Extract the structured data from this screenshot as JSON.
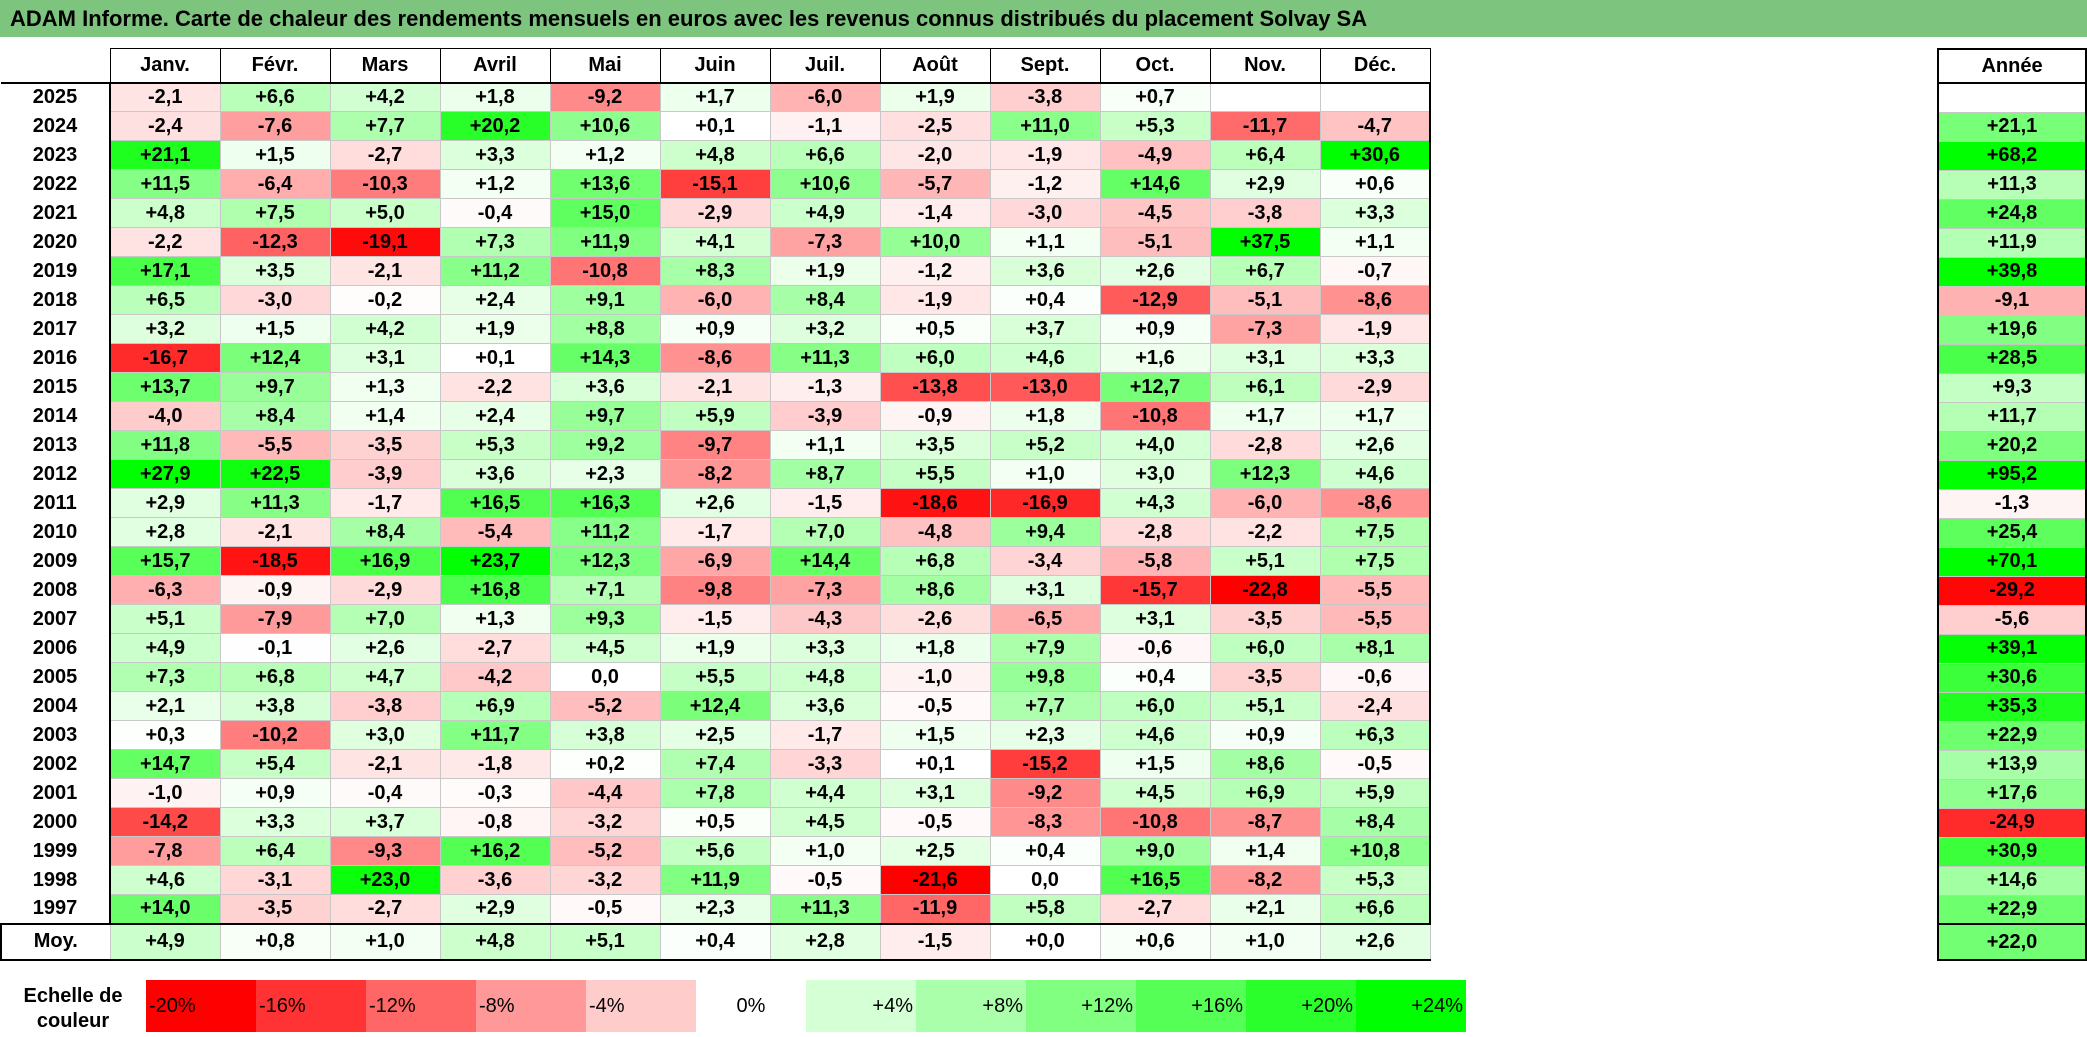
{
  "title": "ADAM Informe. Carte de chaleur des rendements mensuels en euros avec les revenus connus distribués du placement Solvay SA",
  "chart_data": {
    "type": "heatmap",
    "title": "ADAM Informe. Carte de chaleur des rendements mensuels en euros avec les revenus connus distribués du placement Solvay SA",
    "columns": [
      "Janv.",
      "Févr.",
      "Mars",
      "Avril",
      "Mai",
      "Juin",
      "Juil.",
      "Août",
      "Sept.",
      "Oct.",
      "Nov.",
      "Déc."
    ],
    "annual_header": "Année",
    "rows": [
      {
        "year": "2025",
        "values": [
          "-2,1",
          "+6,6",
          "+4,2",
          "+1,8",
          "-9,2",
          "+1,7",
          "-6,0",
          "+1,9",
          "-3,8",
          "+0,7",
          "",
          ""
        ],
        "annual": ""
      },
      {
        "year": "2024",
        "values": [
          "-2,4",
          "-7,6",
          "+7,7",
          "+20,2",
          "+10,6",
          "+0,1",
          "-1,1",
          "-2,5",
          "+11,0",
          "+5,3",
          "-11,7",
          "-4,7"
        ],
        "annual": "+21,1"
      },
      {
        "year": "2023",
        "values": [
          "+21,1",
          "+1,5",
          "-2,7",
          "+3,3",
          "+1,2",
          "+4,8",
          "+6,6",
          "-2,0",
          "-1,9",
          "-4,9",
          "+6,4",
          "+30,6"
        ],
        "annual": "+68,2"
      },
      {
        "year": "2022",
        "values": [
          "+11,5",
          "-6,4",
          "-10,3",
          "+1,2",
          "+13,6",
          "-15,1",
          "+10,6",
          "-5,7",
          "-1,2",
          "+14,6",
          "+2,9",
          "+0,6"
        ],
        "annual": "+11,3"
      },
      {
        "year": "2021",
        "values": [
          "+4,8",
          "+7,5",
          "+5,0",
          "-0,4",
          "+15,0",
          "-2,9",
          "+4,9",
          "-1,4",
          "-3,0",
          "-4,5",
          "-3,8",
          "+3,3"
        ],
        "annual": "+24,8"
      },
      {
        "year": "2020",
        "values": [
          "-2,2",
          "-12,3",
          "-19,1",
          "+7,3",
          "+11,9",
          "+4,1",
          "-7,3",
          "+10,0",
          "+1,1",
          "-5,1",
          "+37,5",
          "+1,1"
        ],
        "annual": "+11,9"
      },
      {
        "year": "2019",
        "values": [
          "+17,1",
          "+3,5",
          "-2,1",
          "+11,2",
          "-10,8",
          "+8,3",
          "+1,9",
          "-1,2",
          "+3,6",
          "+2,6",
          "+6,7",
          "-0,7"
        ],
        "annual": "+39,8"
      },
      {
        "year": "2018",
        "values": [
          "+6,5",
          "-3,0",
          "-0,2",
          "+2,4",
          "+9,1",
          "-6,0",
          "+8,4",
          "-1,9",
          "+0,4",
          "-12,9",
          "-5,1",
          "-8,6"
        ],
        "annual": "-9,1"
      },
      {
        "year": "2017",
        "values": [
          "+3,2",
          "+1,5",
          "+4,2",
          "+1,9",
          "+8,8",
          "+0,9",
          "+3,2",
          "+0,5",
          "+3,7",
          "+0,9",
          "-7,3",
          "-1,9"
        ],
        "annual": "+19,6"
      },
      {
        "year": "2016",
        "values": [
          "-16,7",
          "+12,4",
          "+3,1",
          "+0,1",
          "+14,3",
          "-8,6",
          "+11,3",
          "+6,0",
          "+4,6",
          "+1,6",
          "+3,1",
          "+3,3"
        ],
        "annual": "+28,5"
      },
      {
        "year": "2015",
        "values": [
          "+13,7",
          "+9,7",
          "+1,3",
          "-2,2",
          "+3,6",
          "-2,1",
          "-1,3",
          "-13,8",
          "-13,0",
          "+12,7",
          "+6,1",
          "-2,9"
        ],
        "annual": "+9,3"
      },
      {
        "year": "2014",
        "values": [
          "-4,0",
          "+8,4",
          "+1,4",
          "+2,4",
          "+9,7",
          "+5,9",
          "-3,9",
          "-0,9",
          "+1,8",
          "-10,8",
          "+1,7",
          "+1,7"
        ],
        "annual": "+11,7"
      },
      {
        "year": "2013",
        "values": [
          "+11,8",
          "-5,5",
          "-3,5",
          "+5,3",
          "+9,2",
          "-9,7",
          "+1,1",
          "+3,5",
          "+5,2",
          "+4,0",
          "-2,8",
          "+2,6"
        ],
        "annual": "+20,2"
      },
      {
        "year": "2012",
        "values": [
          "+27,9",
          "+22,5",
          "-3,9",
          "+3,6",
          "+2,3",
          "-8,2",
          "+8,7",
          "+5,5",
          "+1,0",
          "+3,0",
          "+12,3",
          "+4,6"
        ],
        "annual": "+95,2"
      },
      {
        "year": "2011",
        "values": [
          "+2,9",
          "+11,3",
          "-1,7",
          "+16,5",
          "+16,3",
          "+2,6",
          "-1,5",
          "-18,6",
          "-16,9",
          "+4,3",
          "-6,0",
          "-8,6"
        ],
        "annual": "-1,3"
      },
      {
        "year": "2010",
        "values": [
          "+2,8",
          "-2,1",
          "+8,4",
          "-5,4",
          "+11,2",
          "-1,7",
          "+7,0",
          "-4,8",
          "+9,4",
          "-2,8",
          "-2,2",
          "+7,5"
        ],
        "annual": "+25,4"
      },
      {
        "year": "2009",
        "values": [
          "+15,7",
          "-18,5",
          "+16,9",
          "+23,7",
          "+12,3",
          "-6,9",
          "+14,4",
          "+6,8",
          "-3,4",
          "-5,8",
          "+5,1",
          "+7,5"
        ],
        "annual": "+70,1"
      },
      {
        "year": "2008",
        "values": [
          "-6,3",
          "-0,9",
          "-2,9",
          "+16,8",
          "+7,1",
          "-9,8",
          "-7,3",
          "+8,6",
          "+3,1",
          "-15,7",
          "-22,8",
          "-5,5"
        ],
        "annual": "-29,2"
      },
      {
        "year": "2007",
        "values": [
          "+5,1",
          "-7,9",
          "+7,0",
          "+1,3",
          "+9,3",
          "-1,5",
          "-4,3",
          "-2,6",
          "-6,5",
          "+3,1",
          "-3,5",
          "-5,5"
        ],
        "annual": "-5,6"
      },
      {
        "year": "2006",
        "values": [
          "+4,9",
          "-0,1",
          "+2,6",
          "-2,7",
          "+4,5",
          "+1,9",
          "+3,3",
          "+1,8",
          "+7,9",
          "-0,6",
          "+6,0",
          "+8,1"
        ],
        "annual": "+39,1"
      },
      {
        "year": "2005",
        "values": [
          "+7,3",
          "+6,8",
          "+4,7",
          "-4,2",
          "0,0",
          "+5,5",
          "+4,8",
          "-1,0",
          "+9,8",
          "+0,4",
          "-3,5",
          "-0,6"
        ],
        "annual": "+30,6"
      },
      {
        "year": "2004",
        "values": [
          "+2,1",
          "+3,8",
          "-3,8",
          "+6,9",
          "-5,2",
          "+12,4",
          "+3,6",
          "-0,5",
          "+7,7",
          "+6,0",
          "+5,1",
          "-2,4"
        ],
        "annual": "+35,3"
      },
      {
        "year": "2003",
        "values": [
          "+0,3",
          "-10,2",
          "+3,0",
          "+11,7",
          "+3,8",
          "+2,5",
          "-1,7",
          "+1,5",
          "+2,3",
          "+4,6",
          "+0,9",
          "+6,3"
        ],
        "annual": "+22,9"
      },
      {
        "year": "2002",
        "values": [
          "+14,7",
          "+5,4",
          "-2,1",
          "-1,8",
          "+0,2",
          "+7,4",
          "-3,3",
          "+0,1",
          "-15,2",
          "+1,5",
          "+8,6",
          "-0,5"
        ],
        "annual": "+13,9"
      },
      {
        "year": "2001",
        "values": [
          "-1,0",
          "+0,9",
          "-0,4",
          "-0,3",
          "-4,4",
          "+7,8",
          "+4,4",
          "+3,1",
          "-9,2",
          "+4,5",
          "+6,9",
          "+5,9"
        ],
        "annual": "+17,6"
      },
      {
        "year": "2000",
        "values": [
          "-14,2",
          "+3,3",
          "+3,7",
          "-0,8",
          "-3,2",
          "+0,5",
          "+4,5",
          "-0,5",
          "-8,3",
          "-10,8",
          "-8,7",
          "+8,4"
        ],
        "annual": "-24,9"
      },
      {
        "year": "1999",
        "values": [
          "-7,8",
          "+6,4",
          "-9,3",
          "+16,2",
          "-5,2",
          "+5,6",
          "+1,0",
          "+2,5",
          "+0,4",
          "+9,0",
          "+1,4",
          "+10,8"
        ],
        "annual": "+30,9"
      },
      {
        "year": "1998",
        "values": [
          "+4,6",
          "-3,1",
          "+23,0",
          "-3,6",
          "-3,2",
          "+11,9",
          "-0,5",
          "-21,6",
          "0,0",
          "+16,5",
          "-8,2",
          "+5,3"
        ],
        "annual": "+14,6"
      },
      {
        "year": "1997",
        "values": [
          "+14,0",
          "-3,5",
          "-2,7",
          "+2,9",
          "-0,5",
          "+2,3",
          "+11,3",
          "-11,9",
          "+5,8",
          "-2,7",
          "+2,1",
          "+6,6"
        ],
        "annual": "+22,9"
      }
    ],
    "average": {
      "label": "Moy.",
      "values": [
        "+4,9",
        "+0,8",
        "+1,0",
        "+4,8",
        "+5,1",
        "+0,4",
        "+2,8",
        "-1,5",
        "+0,0",
        "+0,6",
        "+1,0",
        "+2,6"
      ],
      "annual": "+22,0"
    },
    "scale": {
      "label": "Echelle de couleur",
      "stops": [
        "-20%",
        "-16%",
        "-12%",
        "-8%",
        "-4%",
        "0%",
        "+4%",
        "+8%",
        "+12%",
        "+16%",
        "+20%",
        "+24%"
      ],
      "values": [
        -20,
        -16,
        -12,
        -8,
        -4,
        0,
        4,
        8,
        12,
        16,
        20,
        24
      ]
    },
    "colors": {
      "negative_max": "#ff0000",
      "neutral": "#ffffff",
      "positive_max": "#00ff00",
      "title_bar": "#7dc47e"
    }
  }
}
